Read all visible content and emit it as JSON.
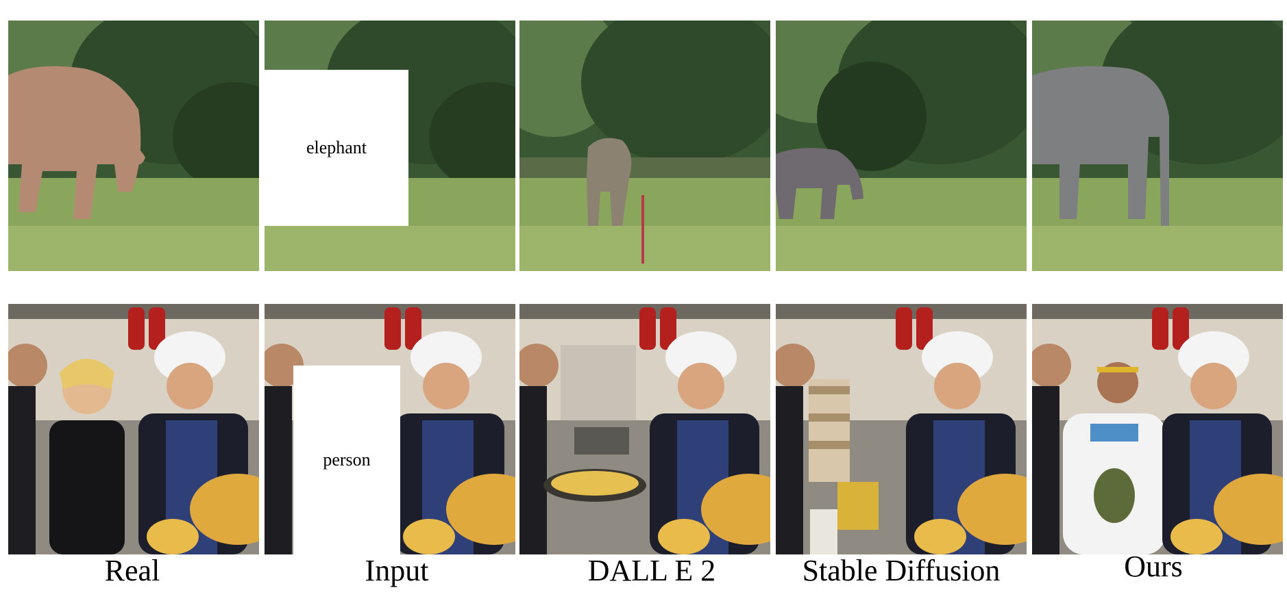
{
  "captions": {
    "real": "Real",
    "input": "Input",
    "dalle": "DALL E 2",
    "sd": "Stable Diffusion",
    "ours": "Ours"
  },
  "masks": {
    "row1": "elephant",
    "row2": "person"
  },
  "colors": {
    "foliage_dark": "#2f4a2a",
    "foliage_mid": "#4f6b3e",
    "grass": "#8aa65c",
    "elephant_pink": "#b48a73",
    "elephant_gray": "#7d7f80",
    "kitchen_wall": "#d9d2c4",
    "apron": "#2f3f78",
    "pizza": "#e0a93e",
    "extinguisher": "#b3201e"
  }
}
